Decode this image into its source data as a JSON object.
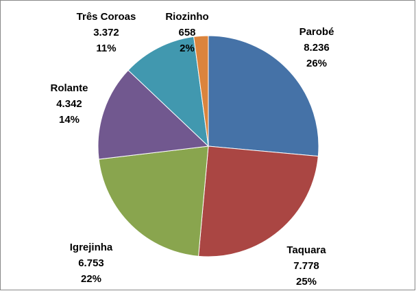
{
  "chart_data": {
    "type": "pie",
    "categories": [
      "Parobé",
      "Taquara",
      "Igrejinha",
      "Rolante",
      "Três Coroas",
      "Riozinho"
    ],
    "values": [
      8236,
      7778,
      6753,
      4342,
      3372,
      658
    ],
    "value_labels": [
      "8.236",
      "7.778",
      "6.753",
      "4.342",
      "3.372",
      "658"
    ],
    "percent_labels": [
      "26%",
      "25%",
      "22%",
      "14%",
      "11%",
      "2%"
    ],
    "colors": [
      "#4572a7",
      "#aa4643",
      "#89a54e",
      "#71588f",
      "#4198af",
      "#db843d"
    ]
  }
}
